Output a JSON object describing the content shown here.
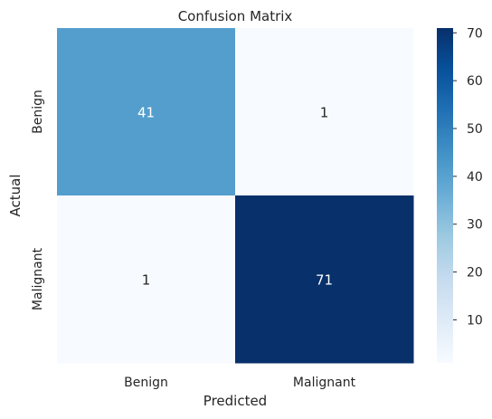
{
  "chart_data": {
    "type": "heatmap",
    "title": "Confusion Matrix",
    "xlabel": "Predicted",
    "ylabel": "Actual",
    "x_categories": [
      "Benign",
      "Malignant"
    ],
    "y_categories": [
      "Benign",
      "Malignant"
    ],
    "values": [
      [
        41,
        1
      ],
      [
        1,
        71
      ]
    ],
    "colormap": "Blues",
    "color_range": [
      1,
      71
    ],
    "colorbar_ticks": [
      10,
      20,
      30,
      40,
      50,
      60,
      70
    ],
    "annotation_colors": {
      "light_cell": "#262626",
      "dark_cell": "#ffffff"
    }
  }
}
